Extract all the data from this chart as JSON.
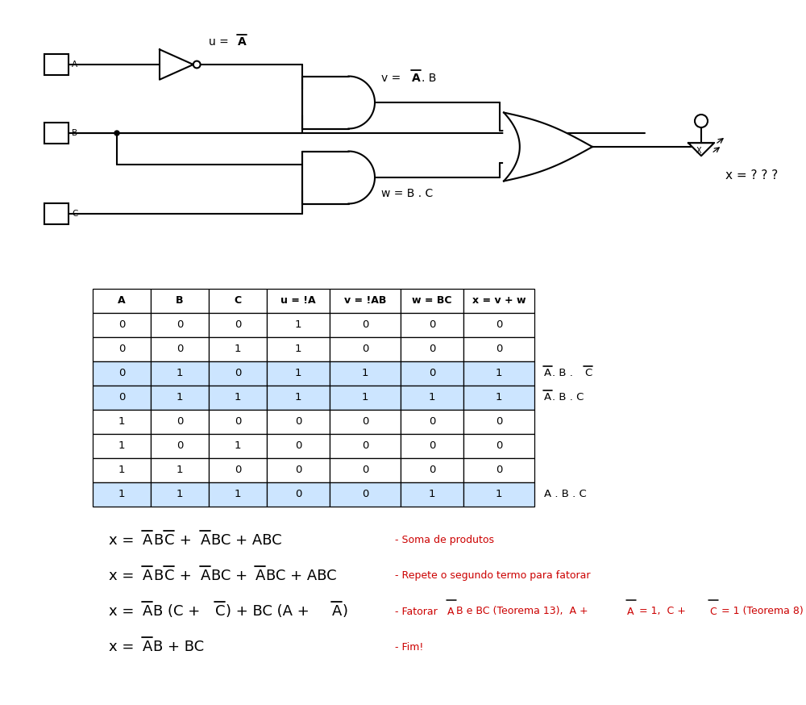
{
  "bg_color": "#ffffff",
  "table_headers": [
    "A",
    "B",
    "C",
    "u = !A",
    "v = !AB",
    "w = BC",
    "x = v + w"
  ],
  "table_data": [
    [
      0,
      0,
      0,
      1,
      0,
      0,
      0
    ],
    [
      0,
      0,
      1,
      1,
      0,
      0,
      0
    ],
    [
      0,
      1,
      0,
      1,
      1,
      0,
      1
    ],
    [
      0,
      1,
      1,
      1,
      1,
      1,
      1
    ],
    [
      1,
      0,
      0,
      0,
      0,
      0,
      0
    ],
    [
      1,
      0,
      1,
      0,
      0,
      0,
      0
    ],
    [
      1,
      1,
      0,
      0,
      0,
      0,
      0
    ],
    [
      1,
      1,
      1,
      0,
      0,
      1,
      1
    ]
  ],
  "highlighted_rows": [
    2,
    3,
    7
  ],
  "highlight_color": "#cce5ff",
  "comment1": "- Soma de produtos",
  "comment2": "- Repete o segundo termo para fatorar",
  "comment3": "- Fatorar A̅B e BC (Teorema 13),  A + A̅ = 1,  C + C̅ = 1 (Teorema 8)",
  "comment4": "- Fim!",
  "comment_color": "#cc0000"
}
